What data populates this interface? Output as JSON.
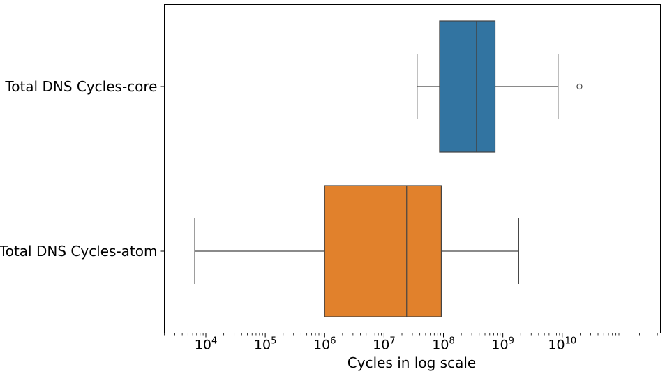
{
  "chart_data": {
    "type": "box",
    "orientation": "horizontal",
    "xlabel": "Cycles in log scale",
    "xscale": "log",
    "xlim": [
      2000,
      450000000000
    ],
    "xticks": [
      {
        "value": 10000,
        "base": "10",
        "exp": "4"
      },
      {
        "value": 100000,
        "base": "10",
        "exp": "5"
      },
      {
        "value": 1000000,
        "base": "10",
        "exp": "6"
      },
      {
        "value": 10000000,
        "base": "10",
        "exp": "7"
      },
      {
        "value": 100000000,
        "base": "10",
        "exp": "8"
      },
      {
        "value": 1000000000,
        "base": "10",
        "exp": "9"
      },
      {
        "value": 10000000000,
        "base": "10",
        "exp": "10"
      }
    ],
    "series": [
      {
        "name": "Total DNS Cycles-core",
        "color": "#3274a1",
        "whisker_low": 36000000,
        "q1": 86000000,
        "median": 360000000,
        "q3": 740000000,
        "whisker_high": 8500000000,
        "outliers": [
          19500000000
        ]
      },
      {
        "name": "Total DNS Cycles-atom",
        "color": "#e1812c",
        "whisker_low": 6500,
        "q1": 1000000,
        "median": 24000000,
        "q3": 92000000,
        "whisker_high": 1850000000,
        "outliers": []
      }
    ],
    "grid": false,
    "legend": "none"
  }
}
